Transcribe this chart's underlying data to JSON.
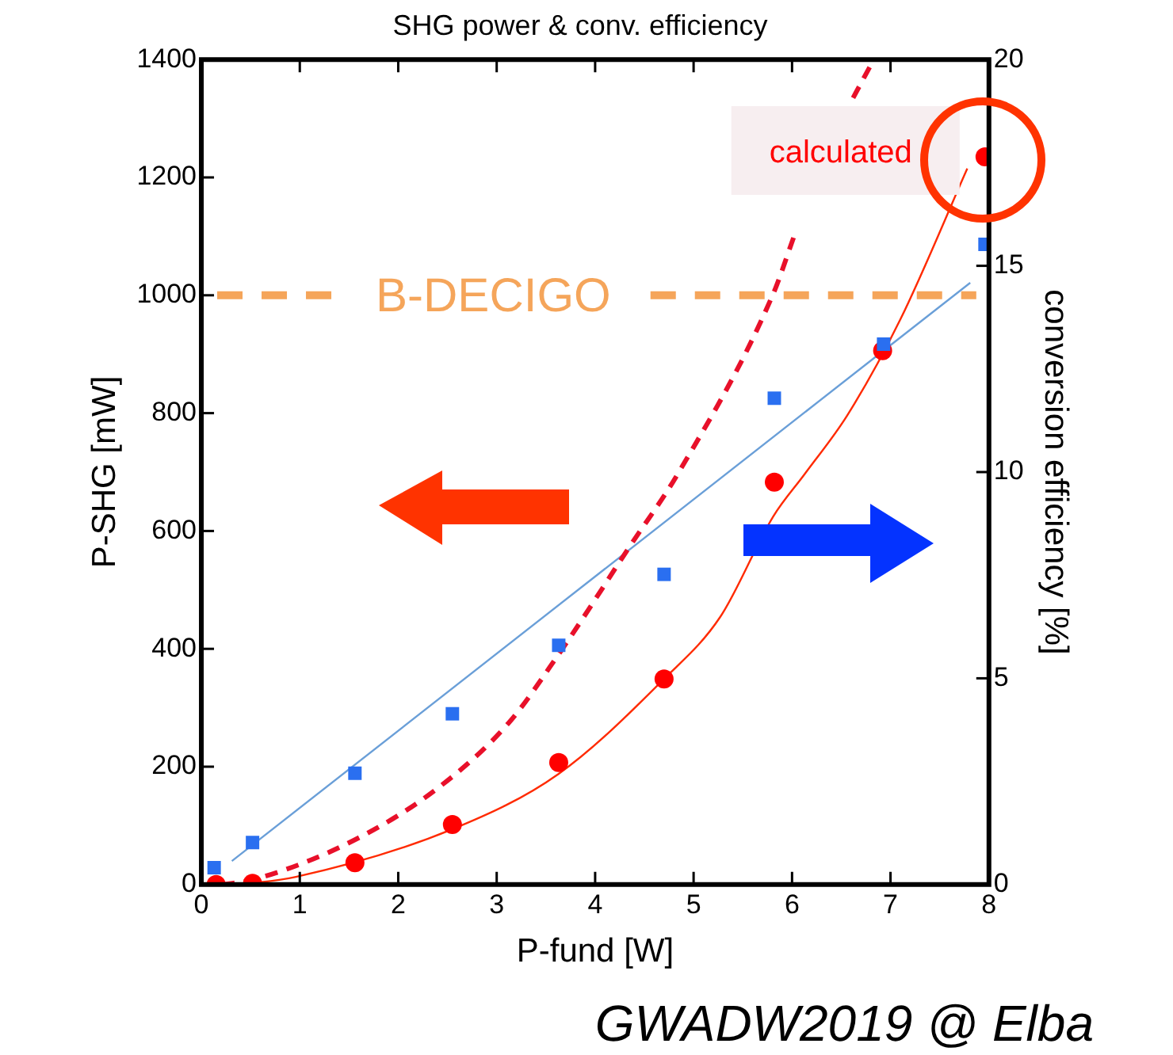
{
  "chart_data": {
    "type": "scatter",
    "title": "SHG power & conv. efficiency",
    "xlabel": "P-fund [W]",
    "ylabel": "P-SHG [mW]",
    "y2label": "conversion efficiency [%]",
    "xlim": [
      0,
      8
    ],
    "xticks": [
      0,
      1,
      2,
      3,
      4,
      5,
      6,
      7,
      8
    ],
    "ylim": [
      0,
      1400
    ],
    "yticks": [
      0,
      200,
      400,
      600,
      800,
      1000,
      1200,
      1400
    ],
    "y2lim": [
      0,
      20
    ],
    "y2ticks": [
      0,
      5,
      10,
      15,
      20
    ],
    "grid": false,
    "legend": false,
    "series": [
      {
        "type": "line",
        "color": "#e8102a",
        "line_style": "dashed",
        "marker": "none",
        "x": [
          0.21,
          0.52,
          1.56,
          2.42,
          3.12,
          3.63,
          4.36,
          4.84,
          5.81,
          6.02,
          6.3,
          6.62,
          6.83
        ],
        "values": [
          0,
          8,
          76,
          166,
          274,
          391,
          576,
          697,
          1003,
          1100,
          null,
          1335,
          1400
        ]
      },
      {
        "type": "line",
        "color": "#ff2a00",
        "line_style": "solid",
        "marker": "none",
        "x": [
          0.4,
          0.96,
          2.55,
          3.63,
          4.7,
          5.27,
          5.81,
          6.13,
          6.56,
          7.1,
          7.78
        ],
        "values": [
          0,
          13,
          94,
          188,
          349,
          454,
          625,
          697,
          796,
          959,
          1215
        ]
      },
      {
        "type": "line",
        "color": "#6a9fd8",
        "line_style": "solid",
        "marker": "none",
        "axis": "y2",
        "x": [
          0.31,
          7.81
        ],
        "values": [
          0.57,
          14.59
        ]
      },
      {
        "type": "scatter",
        "color": "#ff0000",
        "marker": "circle",
        "x": [
          0.15,
          0.52,
          1.56,
          2.55,
          3.63,
          4.7,
          5.82,
          6.92,
          7.96
        ],
        "values": [
          0,
          2,
          37,
          102,
          207,
          349,
          683,
          906,
          1235
        ]
      },
      {
        "type": "scatter",
        "color": "#2a6ff0",
        "marker": "square",
        "axis": "y2",
        "x": [
          0.13,
          0.52,
          1.56,
          2.55,
          3.63,
          4.7,
          5.82,
          6.93,
          7.96
        ],
        "values": [
          0.41,
          1.02,
          2.7,
          4.14,
          5.8,
          7.52,
          11.79,
          13.1,
          15.52
        ]
      }
    ],
    "ref_lines": [
      {
        "axis": "y",
        "value": 1000,
        "label": "B-DECIGO",
        "color": "#f5a55a",
        "line_style": "dashed"
      }
    ],
    "annotations": [
      {
        "text": "calculated",
        "x": 7.96,
        "y": 1235
      },
      "GWADW2019 @ Elba"
    ]
  }
}
